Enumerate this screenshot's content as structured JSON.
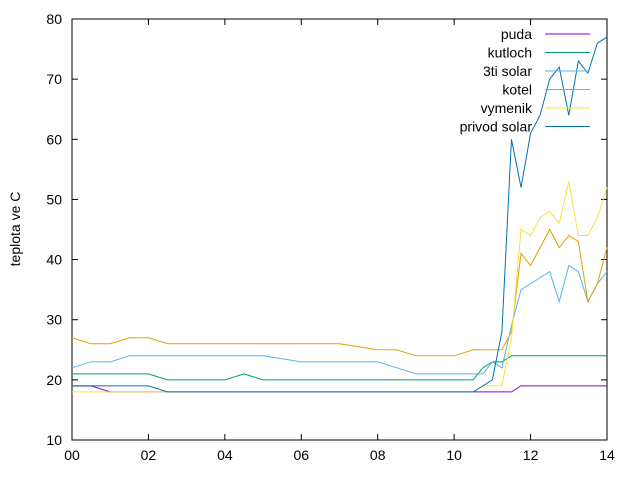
{
  "chart_data": {
    "type": "line",
    "ylabel": "teplota ve C",
    "x": [
      0,
      0.5,
      1,
      1.5,
      2,
      2.5,
      3,
      3.5,
      4,
      4.5,
      5,
      6,
      7,
      8,
      8.5,
      9,
      9.5,
      10,
      10.5,
      10.75,
      11,
      11.25,
      11.5,
      11.75,
      12,
      12.25,
      12.5,
      12.75,
      13,
      13.25,
      13.5,
      13.75,
      14
    ],
    "xlim": [
      0,
      14
    ],
    "xticks": [
      {
        "value": 0,
        "label": "00"
      },
      {
        "value": 2,
        "label": "02"
      },
      {
        "value": 4,
        "label": "04"
      },
      {
        "value": 6,
        "label": "06"
      },
      {
        "value": 8,
        "label": "08"
      },
      {
        "value": 10,
        "label": "10"
      },
      {
        "value": 12,
        "label": "12"
      },
      {
        "value": 14,
        "label": "14"
      }
    ],
    "ylim": [
      10,
      80
    ],
    "yticks": [
      10,
      20,
      30,
      40,
      50,
      60,
      70,
      80
    ],
    "legend": "top-right",
    "series": [
      {
        "name": "puda",
        "color": "#9400d3",
        "values": [
          19,
          19,
          18,
          18,
          18,
          18,
          18,
          18,
          18,
          18,
          18,
          18,
          18,
          18,
          18,
          18,
          18,
          18,
          18,
          18,
          18,
          18,
          18,
          19,
          19,
          19,
          19,
          19,
          19,
          19,
          19,
          19,
          19
        ]
      },
      {
        "name": "kutloch",
        "color": "#009e73",
        "values": [
          21,
          21,
          21,
          21,
          21,
          20,
          20,
          20,
          20,
          21,
          20,
          20,
          20,
          20,
          20,
          20,
          20,
          20,
          20,
          22,
          23,
          23,
          24,
          24,
          24,
          24,
          24,
          24,
          24,
          24,
          24,
          24,
          24
        ]
      },
      {
        "name": "3ti solar",
        "color": "#56b4e9",
        "values": [
          22,
          23,
          23,
          24,
          24,
          24,
          24,
          24,
          24,
          24,
          24,
          23,
          23,
          23,
          22,
          21,
          21,
          21,
          21,
          21,
          23,
          22,
          29,
          35,
          36,
          37,
          38,
          33,
          39,
          38,
          33,
          36,
          38
        ]
      },
      {
        "name": "kotel",
        "color": "#e69f00",
        "values": [
          27,
          26,
          26,
          27,
          27,
          26,
          26,
          26,
          26,
          26,
          26,
          26,
          26,
          25,
          25,
          24,
          24,
          24,
          25,
          25,
          25,
          25,
          28,
          41,
          39,
          42,
          45,
          42,
          44,
          43,
          33,
          36,
          42
        ]
      },
      {
        "name": "vymenik",
        "color": "#f0e442",
        "values": [
          18,
          18,
          18,
          18,
          18,
          18,
          18,
          18,
          18,
          18,
          18,
          18,
          18,
          18,
          18,
          18,
          18,
          18,
          18,
          19,
          19,
          19,
          27,
          45,
          44,
          47,
          48,
          46,
          53,
          44,
          44,
          47,
          52
        ]
      },
      {
        "name": "privod solar",
        "color": "#0072b2",
        "values": [
          19,
          19,
          19,
          19,
          19,
          18,
          18,
          18,
          18,
          18,
          18,
          18,
          18,
          18,
          18,
          18,
          18,
          18,
          18,
          19,
          20,
          28,
          60,
          52,
          61,
          64,
          70,
          72,
          64,
          73,
          71,
          76,
          77
        ]
      }
    ]
  }
}
